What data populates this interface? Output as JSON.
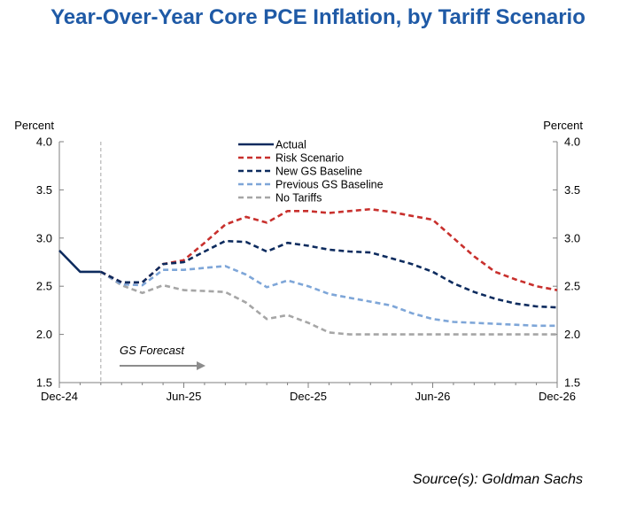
{
  "title": "Year-Over-Year Core PCE Inflation, by Tariff Scenario",
  "source": "Source(s): Goldman Sachs",
  "chart_data": {
    "type": "line",
    "y_unit_left": "Percent",
    "y_unit_right": "Percent",
    "ylim": [
      1.5,
      4.0
    ],
    "yticks": [
      "1.5",
      "2.0",
      "2.5",
      "3.0",
      "3.5",
      "4.0"
    ],
    "xlim": [
      0,
      24
    ],
    "xticks": [
      {
        "x": 0,
        "label": "Dec-24"
      },
      {
        "x": 6,
        "label": "Jun-25"
      },
      {
        "x": 12,
        "label": "Dec-25"
      },
      {
        "x": 18,
        "label": "Jun-26"
      },
      {
        "x": 24,
        "label": "Dec-26"
      }
    ],
    "forecast_start_x": 2,
    "annotation": "GS Forecast",
    "grid": false,
    "legend_position": "top-center",
    "series": [
      {
        "name": "Actual",
        "color": "#0d2b5e",
        "dash": "solid",
        "x": [
          0,
          1,
          2
        ],
        "y": [
          2.87,
          2.65,
          2.65
        ]
      },
      {
        "name": "Risk Scenario",
        "color": "#c8302d",
        "dash": "dashed",
        "x": [
          2,
          3,
          4,
          5,
          6,
          7,
          8,
          9,
          10,
          11,
          12,
          13,
          14,
          15,
          16,
          17,
          18,
          19,
          20,
          21,
          22,
          23,
          24
        ],
        "y": [
          2.65,
          2.54,
          2.54,
          2.73,
          2.77,
          2.95,
          3.14,
          3.22,
          3.16,
          3.28,
          3.28,
          3.26,
          3.28,
          3.3,
          3.27,
          3.23,
          3.19,
          3.0,
          2.81,
          2.65,
          2.57,
          2.5,
          2.46
        ]
      },
      {
        "name": "New GS Baseline",
        "color": "#0d2b5e",
        "dash": "dashed",
        "x": [
          2,
          3,
          4,
          5,
          6,
          7,
          8,
          9,
          10,
          11,
          12,
          13,
          14,
          15,
          16,
          17,
          18,
          19,
          20,
          21,
          22,
          23,
          24
        ],
        "y": [
          2.65,
          2.54,
          2.54,
          2.73,
          2.75,
          2.86,
          2.97,
          2.96,
          2.86,
          2.95,
          2.92,
          2.88,
          2.86,
          2.85,
          2.79,
          2.73,
          2.65,
          2.53,
          2.44,
          2.37,
          2.32,
          2.29,
          2.28
        ]
      },
      {
        "name": "Previous GS Baseline",
        "color": "#7ea6d8",
        "dash": "dashed",
        "x": [
          2,
          3,
          4,
          5,
          6,
          7,
          8,
          9,
          10,
          11,
          12,
          13,
          14,
          15,
          16,
          17,
          18,
          19,
          20,
          21,
          22,
          23,
          24
        ],
        "y": [
          2.65,
          2.52,
          2.51,
          2.67,
          2.67,
          2.69,
          2.71,
          2.62,
          2.49,
          2.56,
          2.5,
          2.42,
          2.38,
          2.34,
          2.3,
          2.22,
          2.16,
          2.13,
          2.12,
          2.11,
          2.1,
          2.09,
          2.09
        ]
      },
      {
        "name": "No Tariffs",
        "color": "#a6a6a6",
        "dash": "dashed",
        "x": [
          2,
          3,
          4,
          5,
          6,
          7,
          8,
          9,
          10,
          11,
          12,
          13,
          14,
          15,
          16,
          17,
          18,
          19,
          20,
          21,
          22,
          23,
          24
        ],
        "y": [
          2.65,
          2.51,
          2.43,
          2.51,
          2.46,
          2.45,
          2.44,
          2.33,
          2.16,
          2.2,
          2.12,
          2.02,
          2.0,
          2.0,
          2.0,
          2.0,
          2.0,
          2.0,
          2.0,
          2.0,
          2.0,
          2.0,
          2.0
        ]
      }
    ]
  }
}
